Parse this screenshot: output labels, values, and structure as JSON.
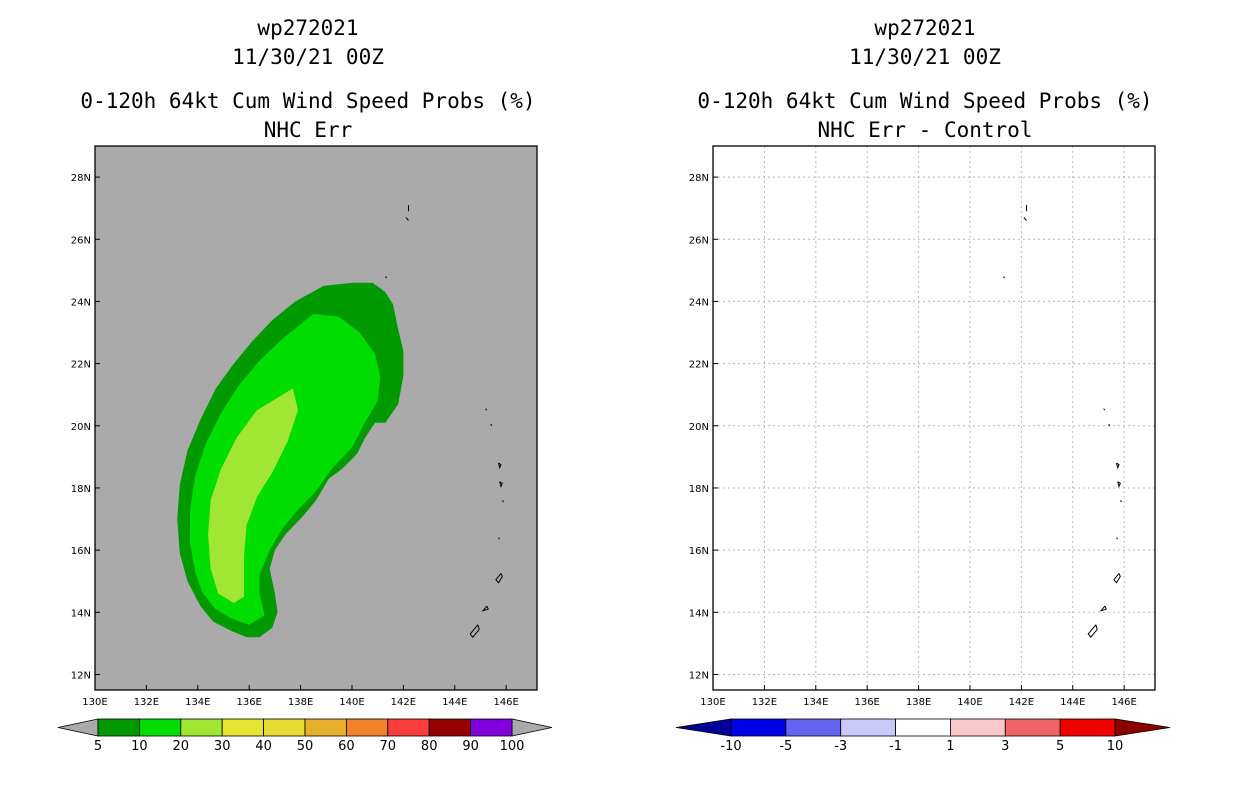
{
  "chart_data": [
    {
      "type": "heatmap",
      "storm_id": "wp272021",
      "date": "11/30/21 00Z",
      "title": "0-120h 64kt Cum Wind Speed Probs (%)",
      "subtitle": "NHC Err",
      "xlim": [
        130,
        147.2
      ],
      "ylim": [
        11.5,
        29
      ],
      "x_ticks": [
        130,
        132,
        134,
        136,
        138,
        140,
        142,
        144,
        146
      ],
      "x_tick_labels": [
        "130E",
        "132E",
        "134E",
        "136E",
        "138E",
        "140E",
        "142E",
        "144E",
        "146E"
      ],
      "y_ticks": [
        12,
        14,
        16,
        18,
        20,
        22,
        24,
        26,
        28
      ],
      "y_tick_labels": [
        "12N",
        "14N",
        "16N",
        "18N",
        "20N",
        "22N",
        "24N",
        "26N",
        "28N"
      ],
      "grid": false,
      "background_color": "#aaaaaa",
      "colorbar": {
        "labels": [
          "5",
          "10",
          "20",
          "30",
          "40",
          "50",
          "60",
          "70",
          "80",
          "90",
          "100"
        ],
        "colors": [
          "#009900",
          "#00dd00",
          "#a0e632",
          "#e6e632",
          "#e6dc32",
          "#e6af2d",
          "#f08228",
          "#fa3c3c",
          "#960000",
          "#8200dc"
        ]
      },
      "contours": [
        {
          "level": 5,
          "color": "#009900",
          "points": [
            [
              140,
              24.6
            ],
            [
              140.8,
              24.6
            ],
            [
              141.3,
              24.3
            ],
            [
              141.6,
              23.9
            ],
            [
              141.8,
              23.1
            ],
            [
              142,
              22.4
            ],
            [
              142,
              21.6
            ],
            [
              141.8,
              20.7
            ],
            [
              141.3,
              20.1
            ],
            [
              140.9,
              20.1
            ],
            [
              140.5,
              19.6
            ],
            [
              140.2,
              19.1
            ],
            [
              139.6,
              18.6
            ],
            [
              139.1,
              18.3
            ],
            [
              138.6,
              17.6
            ],
            [
              138.1,
              17.1
            ],
            [
              137.4,
              16.5
            ],
            [
              137,
              16
            ],
            [
              136.8,
              15.4
            ],
            [
              137,
              14.6
            ],
            [
              137.1,
              14
            ],
            [
              136.9,
              13.5
            ],
            [
              136.4,
              13.2
            ],
            [
              135.9,
              13.2
            ],
            [
              135.3,
              13.4
            ],
            [
              134.6,
              13.7
            ],
            [
              134.1,
              14.2
            ],
            [
              133.6,
              15
            ],
            [
              133.3,
              15.9
            ],
            [
              133.2,
              17
            ],
            [
              133.3,
              18.1
            ],
            [
              133.6,
              19.2
            ],
            [
              134.1,
              20.2
            ],
            [
              134.7,
              21.2
            ],
            [
              135.4,
              22
            ],
            [
              136.1,
              22.7
            ],
            [
              136.9,
              23.4
            ],
            [
              137.8,
              24
            ],
            [
              138.9,
              24.5
            ],
            [
              140,
              24.6
            ]
          ]
        },
        {
          "level": 10,
          "color": "#00dd00",
          "points": [
            [
              138.5,
              23.6
            ],
            [
              139.5,
              23.5
            ],
            [
              140.3,
              23
            ],
            [
              140.9,
              22.3
            ],
            [
              141.1,
              21.6
            ],
            [
              141,
              20.8
            ],
            [
              140.5,
              20.1
            ],
            [
              140,
              19.3
            ],
            [
              139.2,
              18.6
            ],
            [
              138.6,
              17.9
            ],
            [
              137.9,
              17.3
            ],
            [
              137.3,
              16.7
            ],
            [
              136.8,
              16
            ],
            [
              136.4,
              15.2
            ],
            [
              136.4,
              14.6
            ],
            [
              136.6,
              13.9
            ],
            [
              136,
              13.6
            ],
            [
              135.3,
              13.8
            ],
            [
              134.7,
              14.1
            ],
            [
              134.2,
              14.6
            ],
            [
              133.9,
              15.3
            ],
            [
              133.7,
              16.2
            ],
            [
              133.7,
              17.3
            ],
            [
              133.9,
              18.4
            ],
            [
              134.3,
              19.4
            ],
            [
              134.9,
              20.4
            ],
            [
              135.6,
              21.3
            ],
            [
              136.4,
              22.1
            ],
            [
              137.3,
              22.8
            ],
            [
              138.5,
              23.6
            ]
          ]
        },
        {
          "level": 20,
          "color": "#a0e632",
          "points": [
            [
              137.7,
              21.2
            ],
            [
              137.9,
              20.5
            ],
            [
              137.5,
              19.5
            ],
            [
              136.9,
              18.5
            ],
            [
              136.3,
              17.7
            ],
            [
              135.9,
              16.8
            ],
            [
              135.8,
              15.8
            ],
            [
              135.8,
              14.5
            ],
            [
              135.4,
              14.3
            ],
            [
              134.8,
              14.6
            ],
            [
              134.5,
              15.4
            ],
            [
              134.4,
              16.5
            ],
            [
              134.5,
              17.6
            ],
            [
              134.9,
              18.6
            ],
            [
              135.5,
              19.6
            ],
            [
              136.3,
              20.5
            ],
            [
              137.7,
              21.2
            ]
          ]
        }
      ],
      "coastlines": [
        [
          [
            142.2,
            27.1
          ],
          [
            142.2,
            26.9
          ]
        ],
        [
          [
            142.1,
            26.7
          ],
          [
            142.2,
            26.6
          ]
        ],
        [
          [
            141.3,
            24.8
          ],
          [
            141.35,
            24.75
          ]
        ],
        [
          [
            145.2,
            20.55
          ],
          [
            145.25,
            20.5
          ]
        ],
        [
          [
            145.4,
            20.05
          ],
          [
            145.45,
            20.0
          ]
        ],
        [
          [
            145.7,
            18.8
          ],
          [
            145.8,
            18.75
          ],
          [
            145.75,
            18.65
          ],
          [
            145.7,
            18.8
          ]
        ],
        [
          [
            145.75,
            18.2
          ],
          [
            145.85,
            18.15
          ],
          [
            145.8,
            18.05
          ],
          [
            145.75,
            18.2
          ]
        ],
        [
          [
            145.85,
            17.6
          ],
          [
            145.9,
            17.55
          ]
        ],
        [
          [
            145.7,
            16.4
          ],
          [
            145.75,
            16.35
          ]
        ],
        [
          [
            145.8,
            15.25
          ],
          [
            145.85,
            15.15
          ],
          [
            145.7,
            14.95
          ],
          [
            145.6,
            15.05
          ],
          [
            145.8,
            15.25
          ]
        ],
        [
          [
            145.25,
            14.2
          ],
          [
            145.3,
            14.1
          ],
          [
            145.1,
            14.05
          ],
          [
            145.25,
            14.2
          ]
        ],
        [
          [
            144.9,
            13.6
          ],
          [
            144.95,
            13.45
          ],
          [
            144.7,
            13.2
          ],
          [
            144.6,
            13.3
          ],
          [
            144.9,
            13.6
          ]
        ]
      ]
    },
    {
      "type": "heatmap",
      "storm_id": "wp272021",
      "date": "11/30/21 00Z",
      "title": "0-120h 64kt Cum Wind Speed Probs (%)",
      "subtitle": "NHC Err - Control",
      "xlim": [
        130,
        147.2
      ],
      "ylim": [
        11.5,
        29
      ],
      "x_ticks": [
        130,
        132,
        134,
        136,
        138,
        140,
        142,
        144,
        146
      ],
      "x_tick_labels": [
        "130E",
        "132E",
        "134E",
        "136E",
        "138E",
        "140E",
        "142E",
        "144E",
        "146E"
      ],
      "y_ticks": [
        12,
        14,
        16,
        18,
        20,
        22,
        24,
        26,
        28
      ],
      "y_tick_labels": [
        "12N",
        "14N",
        "16N",
        "18N",
        "20N",
        "22N",
        "24N",
        "26N",
        "28N"
      ],
      "grid": true,
      "background_color": "#ffffff",
      "colorbar": {
        "labels": [
          "-10",
          "-5",
          "-3",
          "-1",
          "1",
          "3",
          "5",
          "10"
        ],
        "colors": [
          "#0000e6",
          "#6464f0",
          "#c8c8fa",
          "#ffffff",
          "#fac8c8",
          "#f06464",
          "#f00000"
        ],
        "end_low_color": "#000096",
        "end_high_color": "#8c0000"
      },
      "contours": []
    }
  ]
}
